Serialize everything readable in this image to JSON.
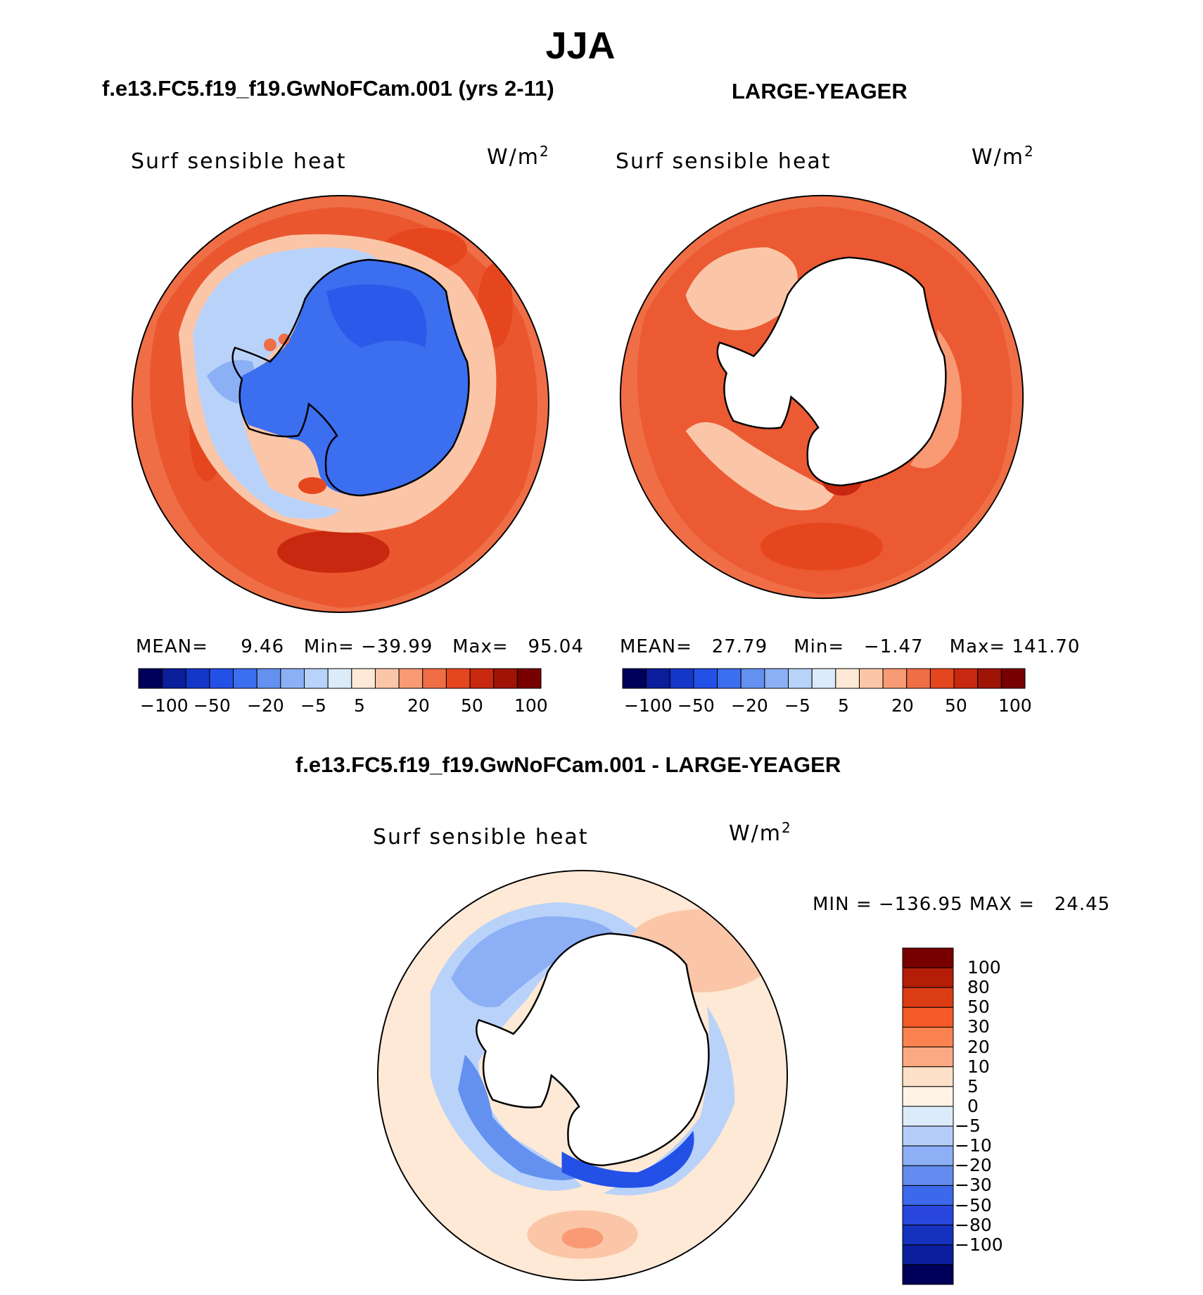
{
  "title": "JJA",
  "units_main": "W/m",
  "units_sup": "2",
  "panels": [
    {
      "name": "model",
      "case_title": "f.e13.FC5.f19_f19.GwNoFCam.001 (yrs 2-11)",
      "variable": "Surf sensible heat",
      "stats": {
        "mean_label": "MEAN=",
        "mean": "9.46",
        "min_label": "Min=",
        "min": "−39.99",
        "max_label": "Max=",
        "max": "95.04"
      }
    },
    {
      "name": "obs",
      "case_title": "LARGE-YEAGER",
      "variable": "Surf sensible heat",
      "stats": {
        "mean_label": "MEAN=",
        "mean": "27.79",
        "min_label": "Min=",
        "min": "−1.47",
        "max_label": "Max=",
        "max": "141.70"
      }
    }
  ],
  "horizontal_colorbar": {
    "colors": [
      "#00005a",
      "#0a1e9c",
      "#1437c8",
      "#2350e6",
      "#3c6ef0",
      "#6491f0",
      "#8cb0f5",
      "#b9d2fa",
      "#dcebfa",
      "#fde9d5",
      "#fbc6a8",
      "#f89a73",
      "#f06e46",
      "#e6461e",
      "#c8280f",
      "#a01405",
      "#780000"
    ],
    "tick_labels": [
      "−100",
      "−50",
      "−20",
      "−5",
      "5",
      "20",
      "50",
      "100"
    ]
  },
  "difference_panel": {
    "title": "f.e13.FC5.f19_f19.GwNoFCam.001 - LARGE-YEAGER",
    "variable": "Surf sensible heat",
    "min_max_text": "MIN = −136.95 MAX =   24.45",
    "colorbar": {
      "colors_top_to_bottom": [
        "#780000",
        "#b41e08",
        "#dc3c14",
        "#f55a28",
        "#fa8250",
        "#faaa82",
        "#fde0c8",
        "#fff3e6",
        "#dcebfa",
        "#b4cdf8",
        "#8caff5",
        "#648cf0",
        "#3c69eb",
        "#2846dc",
        "#1432be",
        "#0a1e9c",
        "#00005a"
      ],
      "labels": [
        "100",
        "80",
        "50",
        "30",
        "20",
        "10",
        "5",
        "0",
        "−5",
        "−10",
        "−20",
        "−30",
        "−50",
        "−80",
        "−100"
      ]
    }
  },
  "colors": {
    "ocean_warm": "#f06e46",
    "ocean_hot": "#e6461e",
    "ocean_pale": "#fbc6a8",
    "ice_blue": "#3c6ef0",
    "ice_light": "#b9d2fa",
    "land_white": "#ffffff",
    "diff_pale": "#fde9d5",
    "diff_blue": "#8caff5",
    "diff_dark": "#2350e6"
  }
}
